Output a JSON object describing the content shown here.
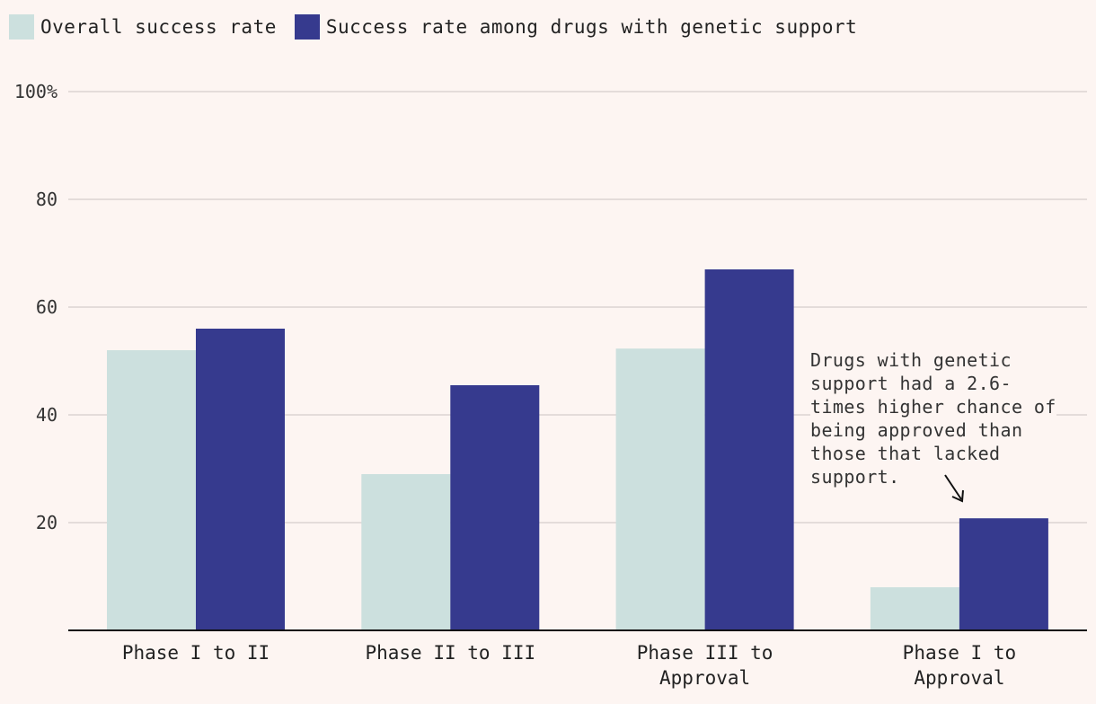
{
  "legend": {
    "overall_label": "Overall success rate",
    "genetic_label": "Success rate among drugs with genetic support"
  },
  "colors": {
    "overall": "#cce0de",
    "genetic": "#363a8e",
    "grid": "#dbd4d2",
    "axis": "#111111",
    "background": "#fdf5f2"
  },
  "annotation": {
    "text": "Drugs with genetic\nsupport had a 2.6-\ntimes higher chance of\nbeing approved than\nthose that lacked\nsupport."
  },
  "chart_data": {
    "type": "bar",
    "categories": [
      [
        "Phase I to II"
      ],
      [
        "Phase II to III"
      ],
      [
        "Phase III to",
        "Approval"
      ],
      [
        "Phase I to",
        "Approval"
      ]
    ],
    "series": [
      {
        "name": "Overall success rate",
        "values": [
          52,
          29,
          52.3,
          8
        ]
      },
      {
        "name": "Success rate among drugs with genetic support",
        "values": [
          56,
          45.5,
          67,
          20.8
        ]
      }
    ],
    "yticks": [
      {
        "value": 100,
        "label": "100%"
      },
      {
        "value": 80,
        "label": "80"
      },
      {
        "value": 60,
        "label": "60"
      },
      {
        "value": 40,
        "label": "40"
      },
      {
        "value": 20,
        "label": "20"
      }
    ],
    "ylim": [
      0,
      100
    ],
    "title": "",
    "xlabel": "",
    "ylabel": ""
  }
}
